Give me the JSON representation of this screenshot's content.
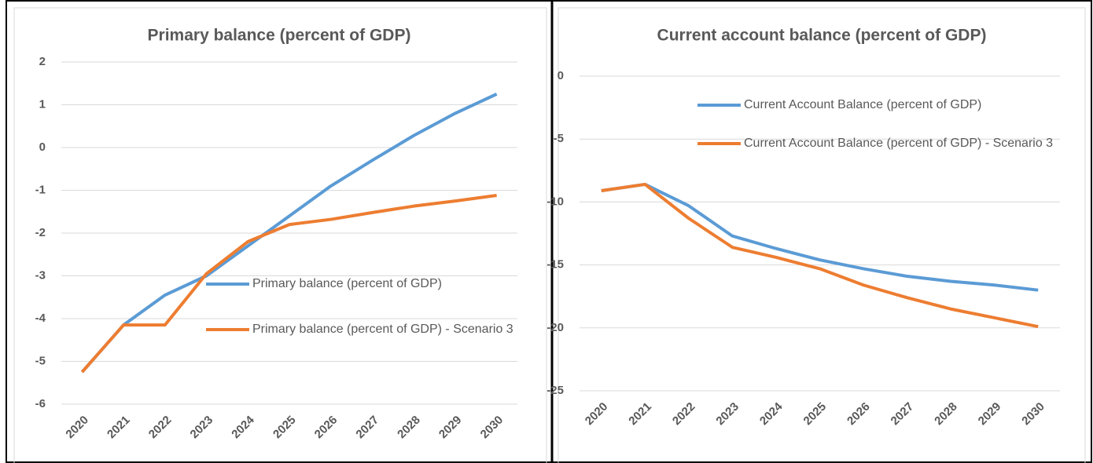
{
  "chart_data": [
    {
      "type": "line",
      "title": "Primary balance (percent of GDP)",
      "categories": [
        "2020",
        "2021",
        "2022",
        "2023",
        "2024",
        "2025",
        "2026",
        "2027",
        "2028",
        "2029",
        "2030"
      ],
      "series": [
        {
          "name": "Primary balance (percent of GDP)",
          "color": "#5b9bd5",
          "values": [
            -5.25,
            -4.15,
            -3.45,
            -3.0,
            -2.3,
            -1.6,
            -0.9,
            -0.3,
            0.28,
            0.8,
            1.25
          ]
        },
        {
          "name": "Primary balance (percent of GDP) - Scenario 3",
          "color": "#ed7d31",
          "values": [
            -5.25,
            -4.15,
            -4.15,
            -2.95,
            -2.2,
            -1.8,
            -1.68,
            -1.52,
            -1.37,
            -1.25,
            -1.12
          ]
        }
      ],
      "ylim": [
        -6,
        2
      ],
      "yticks": [
        -6,
        -5,
        -4,
        -3,
        -2,
        -1,
        0,
        1,
        2
      ],
      "grid": true
    },
    {
      "type": "line",
      "title": "Current account balance (percent of GDP)",
      "categories": [
        "2020",
        "2021",
        "2022",
        "2023",
        "2024",
        "2025",
        "2026",
        "2027",
        "2028",
        "2029",
        "2030"
      ],
      "series": [
        {
          "name": "Current Account Balance (percent of GDP)",
          "color": "#5b9bd5",
          "values": [
            -9.1,
            -8.6,
            -10.3,
            -12.7,
            -13.7,
            -14.6,
            -15.3,
            -15.9,
            -16.3,
            -16.6,
            -17.0
          ]
        },
        {
          "name": "Current Account Balance (percent of GDP) - Scenario 3",
          "color": "#ed7d31",
          "values": [
            -9.1,
            -8.6,
            -11.3,
            -13.6,
            -14.4,
            -15.3,
            -16.6,
            -17.6,
            -18.5,
            -19.2,
            -19.9
          ]
        }
      ],
      "ylim": [
        -25,
        0
      ],
      "yticks": [
        -25,
        -20,
        -15,
        -10,
        -5,
        0
      ],
      "grid": true
    }
  ]
}
